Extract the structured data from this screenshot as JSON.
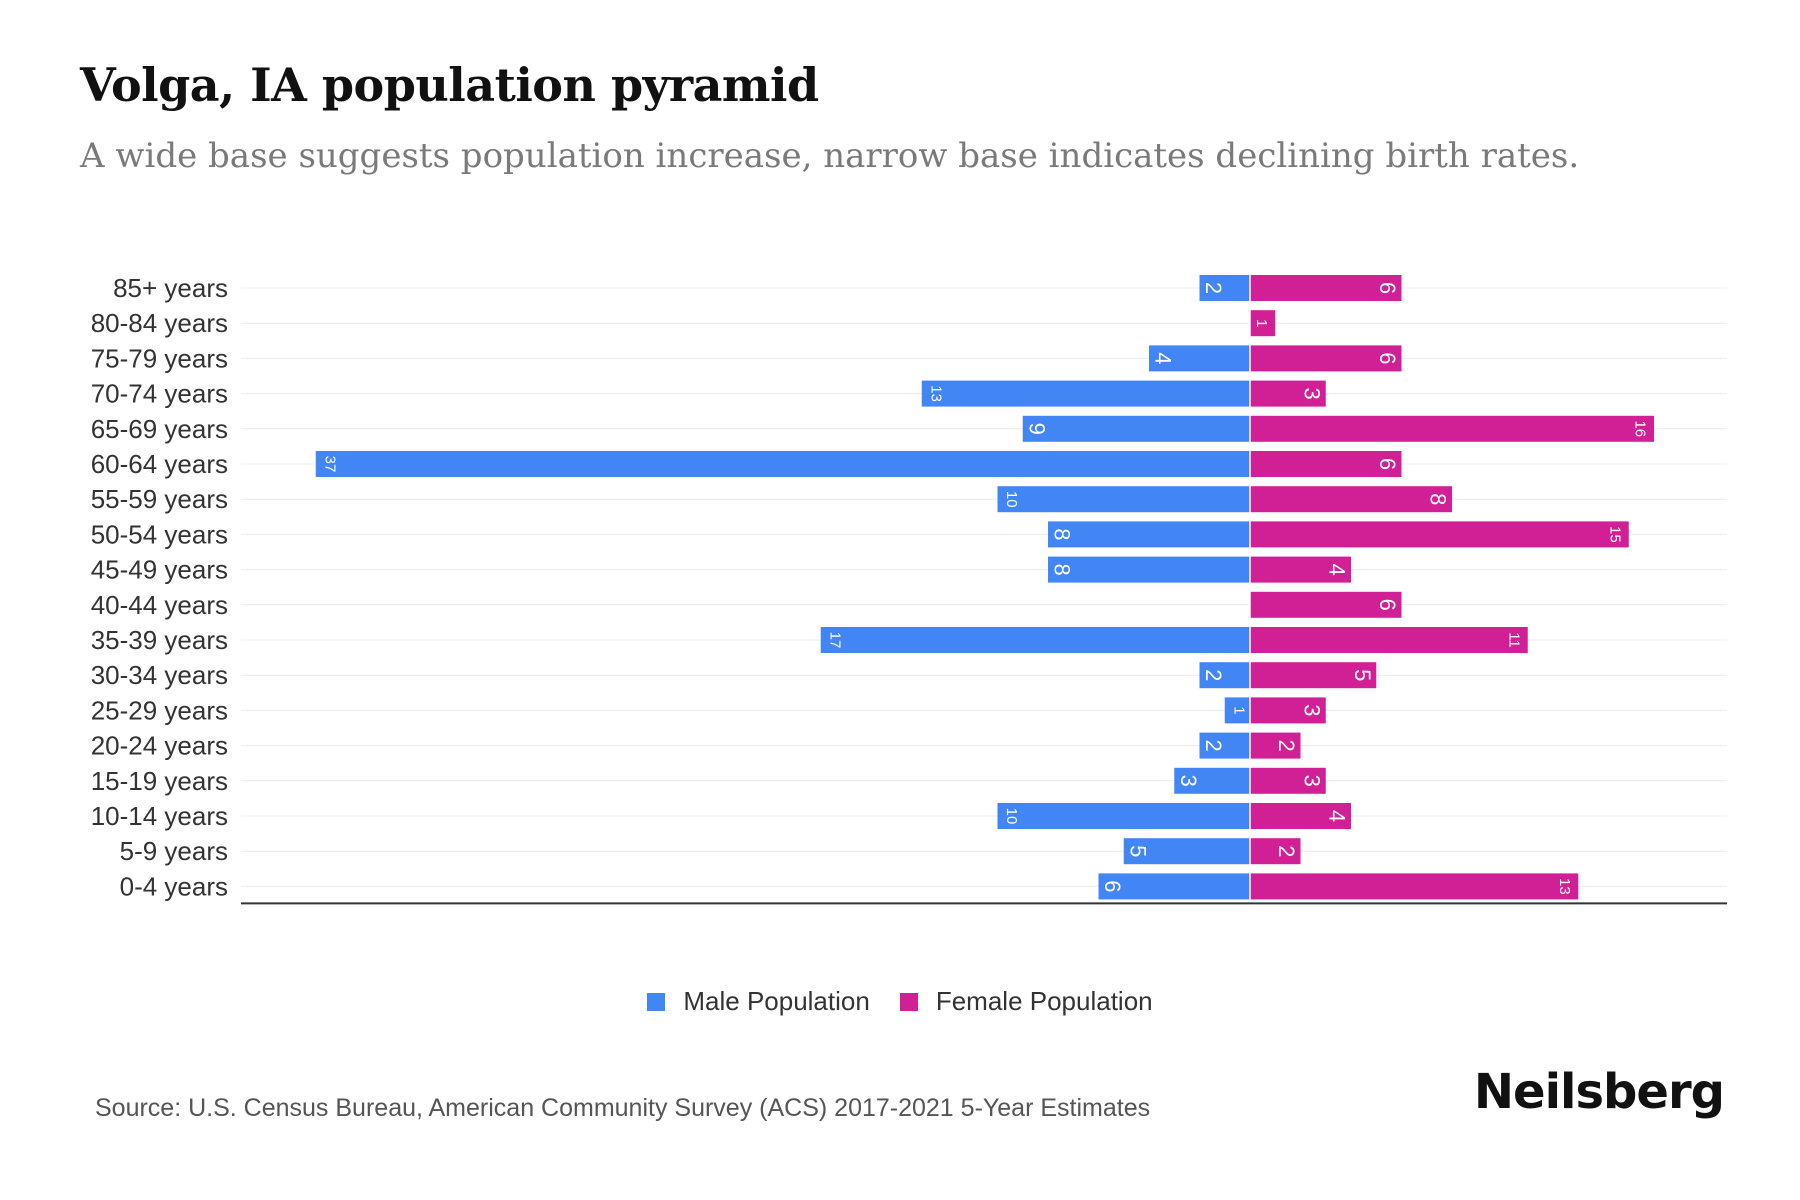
{
  "chart_data": {
    "type": "bar",
    "orientation": "horizontal-pyramid",
    "title": "Volga, IA population pyramid",
    "subtitle": "A wide base suggests population increase, narrow base indicates declining birth rates.",
    "categories": [
      "85+ years",
      "80-84 years",
      "75-79 years",
      "70-74 years",
      "65-69 years",
      "60-64 years",
      "55-59 years",
      "50-54 years",
      "45-49 years",
      "40-44 years",
      "35-39 years",
      "30-34 years",
      "25-29 years",
      "20-24 years",
      "15-19 years",
      "10-14 years",
      "5-9 years",
      "0-4 years"
    ],
    "series": [
      {
        "name": "Male Population",
        "color": "#4285f4",
        "values": [
          2,
          0,
          4,
          13,
          9,
          37,
          10,
          8,
          8,
          0,
          17,
          2,
          1,
          2,
          3,
          10,
          5,
          6
        ]
      },
      {
        "name": "Female Population",
        "color": "#d11f96",
        "values": [
          6,
          1,
          6,
          3,
          16,
          6,
          8,
          15,
          4,
          6,
          11,
          5,
          3,
          2,
          3,
          4,
          2,
          13
        ]
      }
    ],
    "xlim": [
      -40,
      19
    ],
    "legend_position": "bottom"
  },
  "source": "Source: U.S. Census Bureau, American Community Survey (ACS) 2017-2021 5-Year Estimates",
  "brand": "Neilsberg"
}
